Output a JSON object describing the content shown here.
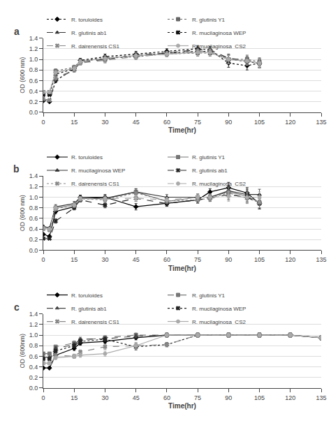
{
  "chart_data": [
    {
      "type": "line",
      "title": "a",
      "xlabel": "Time(hr)",
      "ylabel": "OD (600 nm)",
      "xlim": [
        0,
        135
      ],
      "ylim": [
        0,
        1.4
      ],
      "xticks": [
        0,
        15,
        30,
        45,
        60,
        75,
        90,
        105,
        120,
        135
      ],
      "yticks": [
        {
          "value": 0,
          "label": "0.0"
        },
        0.2,
        0.4,
        0.6,
        0.8,
        {
          "value": 1.0,
          "label": "1.0"
        },
        1.2,
        1.4
      ],
      "grid": "y",
      "legend": "top left",
      "x": [
        0,
        3,
        6,
        15,
        18,
        30,
        45,
        60,
        75,
        81,
        90,
        99,
        105
      ],
      "series": [
        {
          "name": "R. toruloides",
          "color": "#000000",
          "line_style": "dotted",
          "marker": "diamond",
          "values": [
            0.22,
            0.2,
            0.6,
            0.82,
            0.98,
            1.05,
            1.1,
            1.15,
            1.2,
            1.18,
            0.93,
            0.88,
            0.93
          ],
          "yerr": [
            0.01,
            0.01,
            0.04,
            0.04,
            0.04,
            0.05,
            0.05,
            0.05,
            0.06,
            0.06,
            0.08,
            0.08,
            0.08
          ]
        },
        {
          "name": "R. glutinis Y1",
          "color": "#666666",
          "line_style": "dotted",
          "marker": "square",
          "values": [
            0.38,
            0.38,
            0.78,
            0.85,
            0.97,
            1.02,
            1.05,
            1.1,
            1.12,
            1.12,
            1.0,
            1.0,
            0.95
          ],
          "yerr": [
            0.02,
            0.02,
            0.04,
            0.04,
            0.04,
            0.05,
            0.05,
            0.05,
            0.06,
            0.06,
            0.08,
            0.08,
            0.08
          ]
        },
        {
          "name": "R. glutinis ab1",
          "color": "#333333",
          "line_style": "dashed",
          "marker": "triangle-up",
          "values": [
            0.25,
            0.22,
            0.62,
            0.8,
            0.95,
            1.0,
            1.08,
            1.12,
            1.18,
            1.18,
            1.02,
            0.98,
            0.93
          ],
          "yerr": [
            0.01,
            0.01,
            0.04,
            0.04,
            0.04,
            0.05,
            0.05,
            0.05,
            0.06,
            0.06,
            0.08,
            0.08,
            0.08
          ]
        },
        {
          "name": "R. mucilaginosa WEP",
          "color": "#111111",
          "line_style": "dotted",
          "marker": "x",
          "values": [
            0.33,
            0.33,
            0.72,
            0.82,
            0.96,
            1.02,
            1.07,
            1.12,
            1.15,
            1.15,
            1.0,
            0.96,
            0.92
          ],
          "yerr": [
            0.02,
            0.02,
            0.04,
            0.04,
            0.04,
            0.05,
            0.05,
            0.05,
            0.06,
            0.06,
            0.08,
            0.08,
            0.08
          ]
        },
        {
          "name": "R. dairenensis CS1",
          "color": "#888888",
          "line_style": "dashed",
          "marker": "x",
          "values": [
            0.25,
            0.23,
            0.65,
            0.8,
            0.93,
            0.98,
            1.05,
            1.1,
            1.15,
            1.15,
            1.0,
            0.97,
            0.92
          ],
          "yerr": [
            0.01,
            0.01,
            0.04,
            0.04,
            0.04,
            0.05,
            0.05,
            0.05,
            0.06,
            0.06,
            0.08,
            0.08,
            0.08
          ]
        },
        {
          "name": "R. mucilaginosa  CS2",
          "color": "#aaaaaa",
          "line_style": "solid",
          "marker": "circle",
          "values": [
            0.38,
            0.38,
            0.75,
            0.83,
            0.96,
            1.02,
            1.07,
            1.1,
            1.13,
            1.13,
            1.0,
            0.97,
            0.93
          ],
          "yerr": [
            0.02,
            0.02,
            0.04,
            0.04,
            0.04,
            0.05,
            0.05,
            0.05,
            0.06,
            0.06,
            0.08,
            0.08,
            0.08
          ]
        }
      ]
    },
    {
      "type": "line",
      "title": "b",
      "xlabel": "Time(hr)",
      "ylabel": "OD (600 nm)",
      "xlim": [
        0,
        135
      ],
      "ylim": [
        0,
        1.4
      ],
      "xticks": [
        0,
        15,
        30,
        45,
        60,
        75,
        90,
        105,
        120,
        135
      ],
      "yticks": [
        {
          "value": 0,
          "label": "0.0"
        },
        0.2,
        0.4,
        0.6,
        0.8,
        {
          "value": 1.0,
          "label": "1.0"
        },
        1.2,
        1.4
      ],
      "grid": "y",
      "legend": "top left",
      "x": [
        0,
        3,
        6,
        15,
        18,
        30,
        45,
        60,
        75,
        81,
        90,
        99,
        105
      ],
      "series": [
        {
          "name": "R. toruloides",
          "color": "#000000",
          "line_style": "solid",
          "marker": "diamond",
          "values": [
            0.3,
            0.26,
            0.73,
            0.82,
            1.0,
            1.0,
            0.82,
            0.88,
            0.95,
            1.1,
            1.18,
            1.08,
            0.88
          ],
          "yerr": [
            0.02,
            0.02,
            0.04,
            0.04,
            0.04,
            0.05,
            0.06,
            0.05,
            0.06,
            0.06,
            0.1,
            0.1,
            0.1
          ]
        },
        {
          "name": "R. glutinis Y1",
          "color": "#777777",
          "line_style": "solid",
          "marker": "square",
          "values": [
            0.42,
            0.4,
            0.8,
            0.85,
            0.98,
            0.97,
            1.1,
            0.92,
            1.0,
            1.0,
            1.1,
            1.02,
            0.9
          ],
          "yerr": [
            0.02,
            0.02,
            0.04,
            0.04,
            0.04,
            0.05,
            0.06,
            0.05,
            0.06,
            0.06,
            0.1,
            0.1,
            0.1
          ]
        },
        {
          "name": "R. mucilaginosa WEP",
          "color": "#333333",
          "line_style": "solid",
          "marker": "triangle-up",
          "values": [
            0.45,
            0.42,
            0.82,
            0.88,
            1.0,
            0.98,
            1.1,
            1.0,
            1.0,
            1.0,
            1.12,
            1.05,
            1.05
          ],
          "yerr": [
            0.02,
            0.02,
            0.04,
            0.04,
            0.04,
            0.05,
            0.06,
            0.05,
            0.06,
            0.06,
            0.1,
            0.1,
            0.1
          ]
        },
        {
          "name": "R. glutinis ab1",
          "color": "#222222",
          "line_style": "dashed",
          "marker": "x",
          "values": [
            0.22,
            0.22,
            0.55,
            0.8,
            0.95,
            0.85,
            0.98,
            0.88,
            0.95,
            0.98,
            1.05,
            1.0,
            0.88
          ],
          "yerr": [
            0.01,
            0.01,
            0.04,
            0.04,
            0.04,
            0.05,
            0.06,
            0.05,
            0.06,
            0.06,
            0.1,
            0.1,
            0.1
          ]
        },
        {
          "name": "R. dairenensis CS1",
          "color": "#888888",
          "line_style": "dotted",
          "marker": "x",
          "values": [
            0.4,
            0.38,
            0.78,
            0.85,
            0.97,
            0.95,
            1.08,
            0.93,
            0.95,
            0.98,
            1.08,
            0.98,
            0.9
          ],
          "yerr": [
            0.02,
            0.02,
            0.04,
            0.04,
            0.04,
            0.05,
            0.06,
            0.05,
            0.06,
            0.06,
            0.1,
            0.1,
            0.1
          ]
        },
        {
          "name": "R. mucilaginosa  CS2",
          "color": "#aaaaaa",
          "line_style": "dashed",
          "marker": "circle",
          "values": [
            0.42,
            0.4,
            0.8,
            0.85,
            0.97,
            0.97,
            0.98,
            0.95,
            1.0,
            1.0,
            1.02,
            1.0,
            1.0
          ],
          "yerr": [
            0.02,
            0.02,
            0.04,
            0.04,
            0.04,
            0.05,
            0.06,
            0.05,
            0.06,
            0.06,
            0.1,
            0.1,
            0.1
          ]
        }
      ]
    },
    {
      "type": "line",
      "title": "c",
      "xlabel": "Time(hr)",
      "ylabel": "OD (600nm)",
      "xlim": [
        0,
        135
      ],
      "ylim": [
        0,
        1.4
      ],
      "xticks": [
        0,
        15,
        30,
        45,
        60,
        75,
        90,
        105,
        120,
        135
      ],
      "yticks": [
        {
          "value": 0,
          "label": "0.0"
        },
        0.2,
        0.4,
        0.6,
        0.8,
        {
          "value": 1.0,
          "label": "1.0"
        },
        1.2,
        1.4
      ],
      "grid": "y",
      "legend": "top left",
      "x": [
        0,
        3,
        6,
        15,
        18,
        30,
        45,
        60,
        75,
        90,
        105,
        120,
        135
      ],
      "series": [
        {
          "name": "R. toruloides",
          "color": "#000000",
          "line_style": "solid",
          "marker": "diamond",
          "values": [
            0.38,
            0.38,
            0.62,
            0.75,
            0.85,
            0.88,
            0.95,
            1.0,
            1.0,
            1.0,
            1.0,
            1.0,
            0.95
          ],
          "yerr": [
            0.02,
            0.02,
            0.03,
            0.04,
            0.04,
            0.04,
            0.04,
            0.04,
            0.04,
            0.04,
            0.04,
            0.04,
            0.04
          ]
        },
        {
          "name": "R. glutinis Y1",
          "color": "#777777",
          "line_style": "dashed",
          "marker": "square",
          "values": [
            0.65,
            0.65,
            0.78,
            0.85,
            0.9,
            0.95,
            1.0,
            1.0,
            1.0,
            1.0,
            1.0,
            1.0,
            0.95
          ],
          "yerr": [
            0.02,
            0.02,
            0.03,
            0.04,
            0.04,
            0.04,
            0.04,
            0.04,
            0.04,
            0.04,
            0.04,
            0.04,
            0.04
          ]
        },
        {
          "name": "R. glutinis ab1",
          "color": "#444444",
          "line_style": "dashed",
          "marker": "triangle-up",
          "values": [
            0.58,
            0.58,
            0.75,
            0.82,
            0.92,
            0.93,
            0.98,
            1.0,
            1.0,
            1.0,
            1.0,
            1.0,
            0.95
          ],
          "yerr": [
            0.02,
            0.02,
            0.03,
            0.04,
            0.04,
            0.04,
            0.04,
            0.04,
            0.04,
            0.04,
            0.04,
            0.04,
            0.04
          ]
        },
        {
          "name": "R. mucilaginosa WEP",
          "color": "#222222",
          "line_style": "dotted",
          "marker": "x",
          "values": [
            0.55,
            0.55,
            0.7,
            0.8,
            0.88,
            0.92,
            0.78,
            0.82,
            1.0,
            1.0,
            1.0,
            1.0,
            0.95
          ],
          "yerr": [
            0.02,
            0.02,
            0.03,
            0.04,
            0.04,
            0.04,
            0.06,
            0.04,
            0.04,
            0.04,
            0.04,
            0.04,
            0.04
          ]
        },
        {
          "name": "R. dairenensis CS1",
          "color": "#888888",
          "line_style": "dashed",
          "marker": "x",
          "values": [
            0.47,
            0.47,
            0.62,
            0.6,
            0.68,
            0.78,
            0.8,
            0.82,
            1.0,
            1.0,
            1.0,
            1.0,
            0.95
          ],
          "yerr": [
            0.02,
            0.02,
            0.03,
            0.04,
            0.04,
            0.05,
            0.06,
            0.04,
            0.04,
            0.04,
            0.04,
            0.04,
            0.04
          ]
        },
        {
          "name": "R. mucilaginosa  CS2",
          "color": "#aaaaaa",
          "line_style": "solid",
          "marker": "circle",
          "values": [
            0.47,
            0.47,
            0.57,
            0.6,
            0.62,
            0.65,
            0.8,
            1.0,
            1.0,
            1.0,
            1.0,
            1.0,
            0.95
          ],
          "yerr": [
            0.02,
            0.02,
            0.03,
            0.04,
            0.04,
            0.05,
            0.06,
            0.04,
            0.04,
            0.04,
            0.04,
            0.04,
            0.04
          ]
        }
      ]
    }
  ]
}
